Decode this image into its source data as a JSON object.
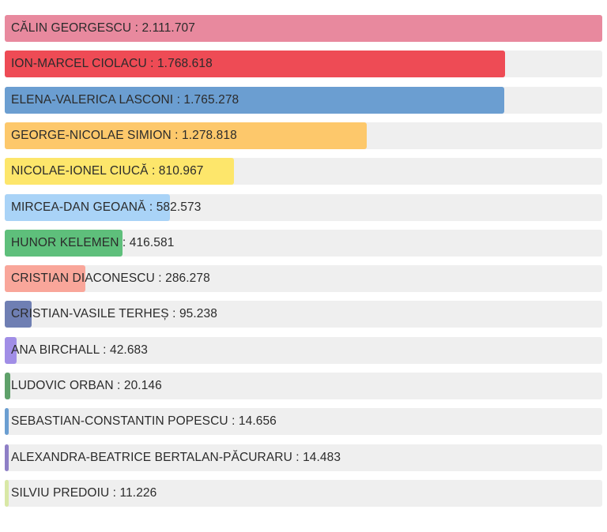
{
  "chart_data": {
    "type": "bar",
    "orientation": "horizontal",
    "separator": " : ",
    "max": 2111707,
    "bars": [
      {
        "name": "CĂLIN GEORGESCU",
        "value_label": "2.111.707",
        "value": 2111707,
        "color": "#e8899e"
      },
      {
        "name": "ION-MARCEL CIOLACU",
        "value_label": "1.768.618",
        "value": 1768618,
        "color": "#ee4b55"
      },
      {
        "name": "ELENA-VALERICA LASCONI",
        "value_label": "1.765.278",
        "value": 1765278,
        "color": "#6b9ed1"
      },
      {
        "name": "GEORGE-NICOLAE SIMION",
        "value_label": "1.278.818",
        "value": 1278818,
        "color": "#fdc86b"
      },
      {
        "name": "NICOLAE-IONEL CIUCĂ",
        "value_label": "810.967",
        "value": 810967,
        "color": "#fde66b"
      },
      {
        "name": "MIRCEA-DAN GEOANĂ",
        "value_label": "582.573",
        "value": 582573,
        "color": "#a9d3f7"
      },
      {
        "name": "HUNOR KELEMEN",
        "value_label": "416.581",
        "value": 416581,
        "color": "#5ebf7b"
      },
      {
        "name": "CRISTIAN DIACONESCU",
        "value_label": "286.278",
        "value": 286278,
        "color": "#f9a69a"
      },
      {
        "name": "CRISTIAN-VASILE TERHEȘ",
        "value_label": "95.238",
        "value": 95238,
        "color": "#6f7fb3"
      },
      {
        "name": "ANA BIRCHALL",
        "value_label": "42.683",
        "value": 42683,
        "color": "#a18ee6"
      },
      {
        "name": "LUDOVIC ORBAN",
        "value_label": "20.146",
        "value": 20146,
        "color": "#5fa16a"
      },
      {
        "name": "SEBASTIAN-CONSTANTIN POPESCU",
        "value_label": "14.656",
        "value": 14656,
        "color": "#6b9ed1"
      },
      {
        "name": "ALEXANDRA-BEATRICE BERTALAN-PĂCURARU",
        "value_label": "14.483",
        "value": 14483,
        "color": "#8e7fc6"
      },
      {
        "name": "SILVIU PREDOIU",
        "value_label": "11.226",
        "value": 11226,
        "color": "#d9e8a6"
      }
    ]
  }
}
